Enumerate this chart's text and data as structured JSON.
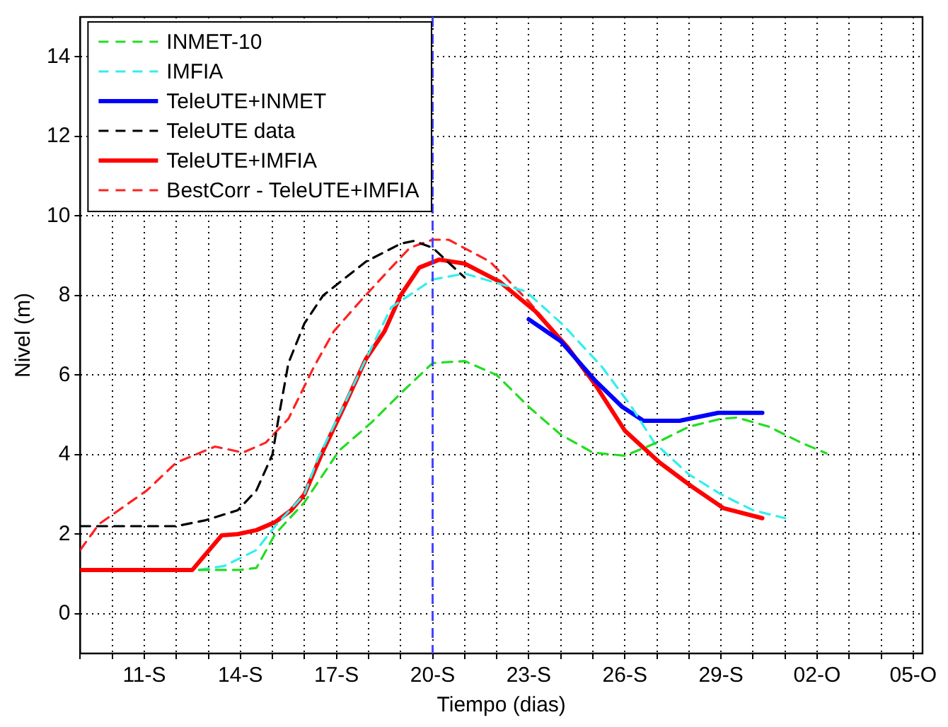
{
  "chart_data": {
    "type": "line",
    "xlabel": "Tiempo (dias)",
    "ylabel": "Nivel (m)",
    "xlim": [
      "--09-09",
      "--10-05T07:00"
    ],
    "ylim": [
      -1,
      15
    ],
    "xticks": [
      {
        "value": "--09-09",
        "label": null
      },
      {
        "value": "--09-10",
        "label": null
      },
      {
        "value": "--09-11",
        "label": "11-S"
      },
      {
        "value": "--09-12",
        "label": null
      },
      {
        "value": "--09-13",
        "label": null
      },
      {
        "value": "--09-14",
        "label": "14-S"
      },
      {
        "value": "--09-15",
        "label": null
      },
      {
        "value": "--09-16",
        "label": null
      },
      {
        "value": "--09-17",
        "label": "17-S"
      },
      {
        "value": "--09-18",
        "label": null
      },
      {
        "value": "--09-19",
        "label": null
      },
      {
        "value": "--09-20",
        "label": "20-S"
      },
      {
        "value": "--09-21",
        "label": null
      },
      {
        "value": "--09-22",
        "label": null
      },
      {
        "value": "--09-23",
        "label": "23-S"
      },
      {
        "value": "--09-24",
        "label": null
      },
      {
        "value": "--09-25",
        "label": null
      },
      {
        "value": "--09-26",
        "label": "26-S"
      },
      {
        "value": "--09-27",
        "label": null
      },
      {
        "value": "--09-28",
        "label": null
      },
      {
        "value": "--09-29",
        "label": "29-S"
      },
      {
        "value": "--09-30",
        "label": null
      },
      {
        "value": "--10-01",
        "label": null
      },
      {
        "value": "--10-02",
        "label": "02-O"
      },
      {
        "value": "--10-03",
        "label": null
      },
      {
        "value": "--10-04",
        "label": null
      },
      {
        "value": "--10-05",
        "label": "05-O"
      }
    ],
    "yticks": [
      0,
      2,
      4,
      6,
      8,
      10,
      12,
      14
    ],
    "grid": true,
    "legend": "top left",
    "marker": "none",
    "ref_lines": [
      {
        "axis": "x",
        "value": "--09-20",
        "color": "#4444ff",
        "line_style": "dashed"
      }
    ],
    "series": [
      {
        "name": "INMET-10",
        "color": "#22dd22",
        "line_style": "dashed",
        "x": [
          "--09-12T17:00",
          "--09-14",
          "--09-14T12:00",
          "--09-15T02:00",
          "--09-16",
          "--09-17T02:00",
          "--09-18T02:00",
          "--09-19T02:00",
          "--09-20",
          "--09-21",
          "--09-22",
          "--09-23",
          "--09-24",
          "--09-25",
          "--09-26",
          "--09-27",
          "--09-28",
          "--09-29",
          "--09-29T12:00",
          "--09-30T12:00",
          "--10-01T12:00",
          "--10-02T07:00"
        ],
        "values": [
          1.1,
          1.1,
          1.15,
          2.0,
          2.8,
          4.1,
          4.8,
          5.6,
          6.3,
          6.35,
          6.0,
          5.2,
          4.5,
          4.05,
          3.97,
          4.3,
          4.7,
          4.9,
          4.93,
          4.7,
          4.3,
          4.03
        ]
      },
      {
        "name": "IMFIA",
        "color": "#33eeee",
        "line_style": "dashed",
        "x": [
          "--09-12T17:00",
          "--09-13T12:00",
          "--09-14T12:00",
          "--09-15T02:00",
          "--09-16",
          "--09-16T10:00",
          "--09-17T05:00",
          "--09-17T22:00",
          "--09-18T17:00",
          "--09-20",
          "--09-21",
          "--09-22T22:00",
          "--09-24T02:00",
          "--09-25T07:00",
          "--09-26T05:00",
          "--09-26T22:00",
          "--09-28",
          "--09-29",
          "--09-30",
          "--10-01"
        ],
        "values": [
          1.1,
          1.2,
          1.6,
          2.2,
          3.0,
          3.9,
          5.2,
          6.4,
          7.7,
          8.4,
          8.55,
          8.1,
          7.25,
          6.2,
          5.2,
          4.3,
          3.5,
          3.0,
          2.6,
          2.4
        ]
      },
      {
        "name": "TeleUTE+INMET",
        "color": "#0000ff",
        "line_style": "solid",
        "x": [
          "--09-23",
          "--09-24",
          "--09-25T02:00",
          "--09-25T22:00",
          "--09-26T14:00",
          "--09-27T17:00",
          "--09-28T22:00",
          "--09-30T07:00"
        ],
        "values": [
          7.4,
          6.85,
          5.85,
          5.2,
          4.85,
          4.85,
          5.05,
          5.05
        ]
      },
      {
        "name": "TeleUTE data",
        "color": "#000000",
        "line_style": "dashed",
        "x": [
          "--09-09",
          "--09-12",
          "--09-12T22:00",
          "--09-13T22:00",
          "--09-14T12:00",
          "--09-15",
          "--09-15T05:00",
          "--09-15T12:00",
          "--09-16",
          "--09-16T14:00",
          "--09-17T22:00",
          "--09-19",
          "--09-19T10:00",
          "--09-20",
          "--09-21"
        ],
        "values": [
          2.2,
          2.2,
          2.35,
          2.6,
          3.1,
          4.0,
          5.0,
          6.3,
          7.3,
          8.0,
          8.85,
          9.3,
          9.37,
          9.2,
          8.45
        ]
      },
      {
        "name": "TeleUTE+IMFIA",
        "color": "#ff0000",
        "line_style": "solid",
        "x": [
          "--09-09",
          "--09-12T12:00",
          "--09-13T10:00",
          "--09-13T22:00",
          "--09-14T12:00",
          "--09-15T02:00",
          "--09-15T14:00",
          "--09-16",
          "--09-16T14:00",
          "--09-17T07:00",
          "--09-17T22:00",
          "--09-18T12:00",
          "--09-19",
          "--09-19T14:00",
          "--09-20T05:00",
          "--09-21",
          "--09-22T02:00",
          "--09-23T05:00",
          "--09-24T05:00",
          "--09-25T02:00",
          "--09-26",
          "--09-27T02:00",
          "--09-28T02:00",
          "--09-29T02:00",
          "--09-30T07:00"
        ],
        "values": [
          1.1,
          1.1,
          1.97,
          2.0,
          2.1,
          2.3,
          2.6,
          3.0,
          4.1,
          5.3,
          6.4,
          7.1,
          8.0,
          8.7,
          8.9,
          8.8,
          8.35,
          7.6,
          6.7,
          5.75,
          4.6,
          3.8,
          3.2,
          2.65,
          2.4
        ]
      },
      {
        "name": "BestCorr - TeleUTE+IMFIA",
        "color": "#ff2222",
        "line_style": "dashed",
        "x": [
          "--09-09",
          "--09-09T14:00",
          "--09-11T02:00",
          "--09-12",
          "--09-13T05:00",
          "--09-14T02:00",
          "--09-14T19:00",
          "--09-15T12:00",
          "--09-16T07:00",
          "--09-16T22:00",
          "--09-17T19:00",
          "--09-18T17:00",
          "--09-19T07:00",
          "--09-20",
          "--09-20T12:00",
          "--09-21T19:00",
          "--09-23",
          "--09-24"
        ],
        "values": [
          1.6,
          2.25,
          3.1,
          3.8,
          4.2,
          4.05,
          4.3,
          4.9,
          6.2,
          7.1,
          7.9,
          8.7,
          9.2,
          9.4,
          9.4,
          8.85,
          7.85,
          6.9
        ]
      }
    ]
  }
}
